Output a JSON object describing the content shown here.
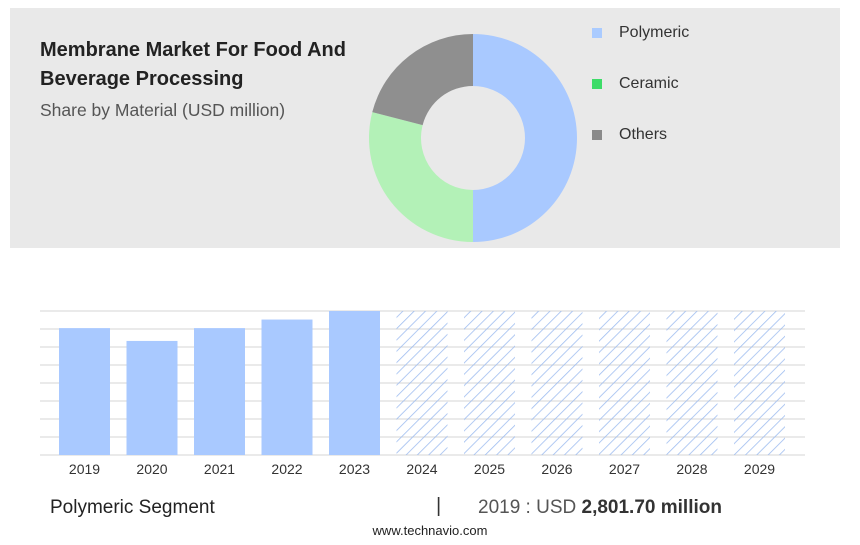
{
  "title": "Membrane Market For Food And Beverage Processing",
  "subtitle": "Share by Material (USD million)",
  "footer": {
    "segment": "Polymeric Segment",
    "separator": "|",
    "value_prefix": "2019 : USD",
    "value_bold": "2,801.70 million"
  },
  "source": "www.technavio.com",
  "colors": {
    "polymeric": "#a9c9ff",
    "ceramic": "#b3f1b7",
    "others": "#8f8f8f",
    "swatch_polymeric": "#aacbff",
    "swatch_ceramic": "#3ddc68",
    "swatch_others": "#8a8a8a",
    "panel": "#e9e9e9",
    "grid": "#d4d4d4",
    "forecast_hatch": "#9fbdf0"
  },
  "chart_data": [
    {
      "type": "pie",
      "donut": true,
      "legend_position": "right",
      "slices": [
        {
          "label": "Polymeric",
          "value": 50
        },
        {
          "label": "Ceramic",
          "value": 29
        },
        {
          "label": "Others",
          "value": 21
        }
      ]
    },
    {
      "type": "bar",
      "categories": [
        "2019",
        "2020",
        "2021",
        "2022",
        "2023",
        "2024",
        "2025",
        "2026",
        "2027",
        "2028",
        "2029"
      ],
      "values": [
        89,
        80,
        89,
        95,
        101,
        101,
        101,
        101,
        101,
        101,
        101
      ],
      "forecast_from": "2024",
      "ylim": [
        0,
        101
      ],
      "grid": true
    }
  ]
}
